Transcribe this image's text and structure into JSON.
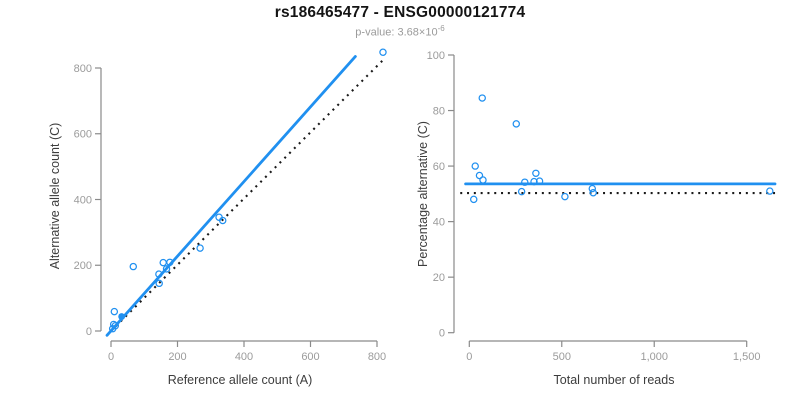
{
  "header": {
    "title": "rs186465477 - ENSG00000121774",
    "pvalue_text": "p-value: 3.68×10",
    "pvalue_exponent": "-6"
  },
  "colors": {
    "accent_blue": "#2090F0",
    "line_black": "#1a1a1a",
    "axis_gray": "#8a8a8a",
    "tick_label_gray": "#9b9b9b",
    "axis_label_gray": "#3d3d3d",
    "title_black": "#141414",
    "subtitle_gray": "#9b9b9b"
  },
  "chart_data": [
    {
      "id": "allele_counts",
      "type": "scatter",
      "xlabel": "Reference allele count (A)",
      "ylabel": "Alternative allele count (C)",
      "xlim": [
        0,
        800
      ],
      "ylim": [
        0,
        800
      ],
      "xticks": [
        0,
        200,
        400,
        600,
        800
      ],
      "xtick_labels": [
        "0",
        "200",
        "400",
        "600",
        "800"
      ],
      "yticks": [
        0,
        200,
        400,
        600,
        800
      ],
      "ytick_labels": [
        "0",
        "200",
        "400",
        "600",
        "800"
      ],
      "grid": false,
      "legend": "none",
      "points": [
        [
          5,
          7
        ],
        [
          8,
          20
        ],
        [
          13,
          16
        ],
        [
          10,
          59
        ],
        [
          67,
          196
        ],
        [
          144,
          173
        ],
        [
          145,
          145
        ],
        [
          157,
          208
        ],
        [
          167,
          189
        ],
        [
          177,
          209
        ],
        [
          268,
          252
        ],
        [
          325,
          346
        ],
        [
          336,
          336
        ],
        [
          818,
          848
        ]
      ],
      "filled_points": [
        [
          32,
          44
        ]
      ],
      "lines": [
        {
          "name": "identity-line",
          "style": "dotted",
          "color": "line_black",
          "from": [
            0,
            0
          ],
          "to": [
            822,
            828
          ]
        },
        {
          "name": "regression-line",
          "style": "solid",
          "color": "accent_blue",
          "from": [
            -12,
            -13
          ],
          "to": [
            735,
            835
          ]
        }
      ]
    },
    {
      "id": "percentage",
      "type": "scatter",
      "xlabel": "Total number of reads",
      "ylabel": "Percentage alternative (C)",
      "xlim": [
        0,
        1500
      ],
      "ylim": [
        0,
        100
      ],
      "xticks": [
        0,
        500,
        1000,
        1500
      ],
      "xtick_labels": [
        "0",
        "500",
        "1,000",
        "1,500"
      ],
      "yticks": [
        0,
        20,
        40,
        60,
        80,
        100
      ],
      "ytick_labels": [
        "0",
        "20",
        "40",
        "60",
        "80",
        "100"
      ],
      "grid": false,
      "legend": "none",
      "points": [
        [
          24,
          48
        ],
        [
          32,
          60
        ],
        [
          55,
          56.6
        ],
        [
          70,
          84.5
        ],
        [
          74,
          55
        ],
        [
          254,
          75.2
        ],
        [
          283,
          50.8
        ],
        [
          300,
          54.2
        ],
        [
          350,
          54.4
        ],
        [
          360,
          57.4
        ],
        [
          380,
          54.6
        ],
        [
          517,
          49
        ],
        [
          665,
          51.9
        ],
        [
          670,
          50.4
        ],
        [
          1625,
          51
        ]
      ],
      "filled_points": [],
      "lines": [
        {
          "name": "expected-percentage-line",
          "style": "dotted",
          "color": "line_black",
          "from": [
            -49,
            50.3
          ],
          "to": [
            1669,
            50.3
          ]
        },
        {
          "name": "fitted-percentage-line",
          "style": "solid",
          "color": "accent_blue",
          "from": [
            -20,
            53.6
          ],
          "to": [
            1653,
            53.6
          ]
        }
      ]
    }
  ]
}
